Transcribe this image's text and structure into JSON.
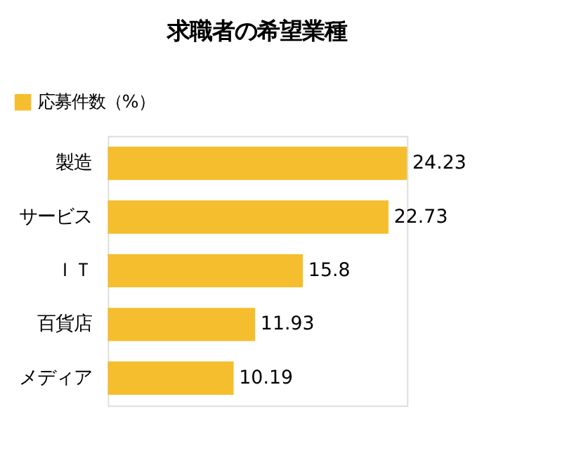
{
  "chart_data": {
    "type": "bar",
    "orientation": "horizontal",
    "title": "求職者の希望業種",
    "categories": [
      "製造",
      "サービス",
      "ＩＴ",
      "百貨店",
      "メディア"
    ],
    "series": [
      {
        "name": "応募件数（%）",
        "color": "#f5be2e",
        "values": [
          24.23,
          22.73,
          15.8,
          11.93,
          10.19
        ]
      }
    ],
    "data_labels": true,
    "legend": "top left",
    "tick_labels": "y"
  }
}
